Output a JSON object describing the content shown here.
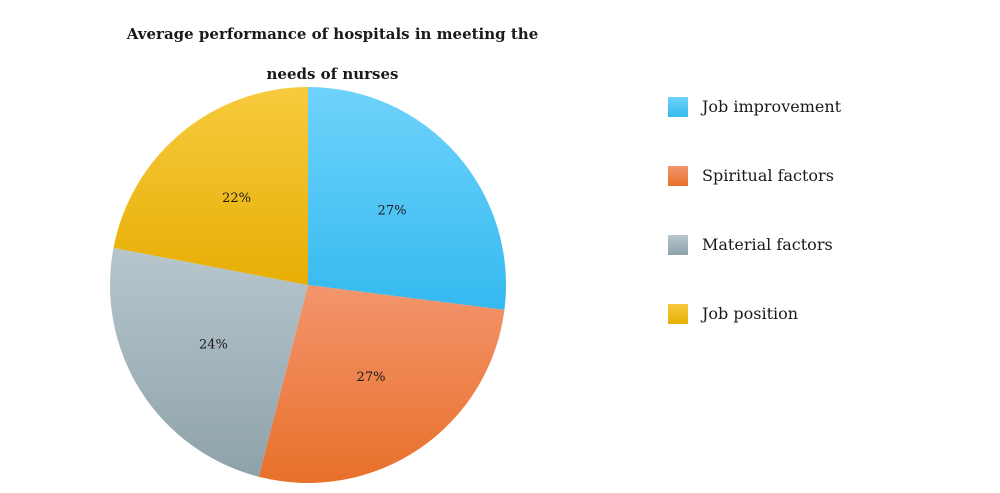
{
  "chart_data": {
    "type": "pie",
    "title": "Average performance of hospitals in meeting the needs of nurses",
    "title_lines": [
      "Average performance of hospitals in meeting the",
      "needs of nurses"
    ],
    "slices": [
      {
        "name": "Job improvement",
        "value": 27,
        "label": "27%",
        "color_light": "#6fd3fb",
        "color_dark": "#34b9ef"
      },
      {
        "name": "Spiritual factors",
        "value": 27,
        "label": "27%",
        "color_light": "#f3956d",
        "color_dark": "#e8702a"
      },
      {
        "name": "Material factors",
        "value": 24,
        "label": "24%",
        "color_light": "#b7c6cd",
        "color_dark": "#8ea2aa"
      },
      {
        "name": "Job position",
        "value": 22,
        "label": "22%",
        "color_light": "#f7cb3e",
        "color_dark": "#e7ae05"
      }
    ],
    "legend_position": "right",
    "start": "top, clockwise"
  }
}
